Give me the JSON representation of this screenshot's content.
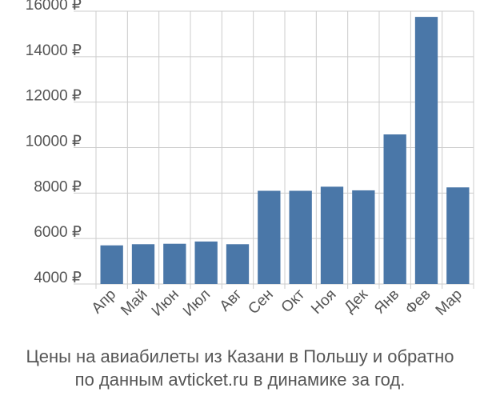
{
  "chart_data": {
    "type": "bar",
    "categories": [
      "Апр",
      "Май",
      "Июн",
      "Июл",
      "Авг",
      "Сен",
      "Окт",
      "Ноя",
      "Дек",
      "Янв",
      "Фев",
      "Мар"
    ],
    "values": [
      5700,
      5750,
      5770,
      5870,
      5750,
      8100,
      8100,
      8280,
      8120,
      10580,
      15750,
      8250
    ],
    "ylim": [
      4000,
      16000
    ],
    "yticks": [
      4000,
      6000,
      8000,
      10000,
      12000,
      14000,
      16000
    ],
    "ytick_labels": [
      "4000 ₽",
      "6000 ₽",
      "8000 ₽",
      "10000 ₽",
      "12000 ₽",
      "14000 ₽",
      "16000 ₽"
    ],
    "grid": true,
    "bar_color": "#4a77a8"
  },
  "caption": {
    "line1": "Цены на авиабилеты из Казани в Польшу и обратно",
    "line2": "по данным avticket.ru в динамике за год."
  }
}
